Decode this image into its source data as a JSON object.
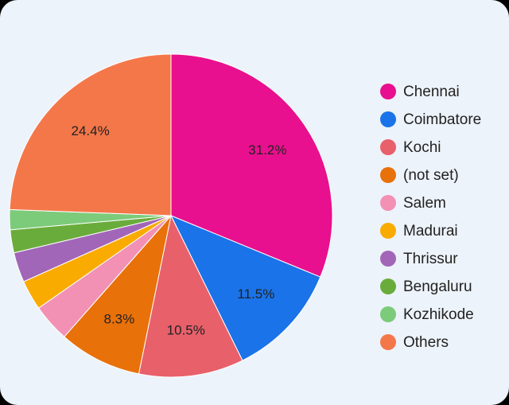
{
  "chart_data": {
    "type": "pie",
    "categories": [
      "Chennai",
      "Coimbatore",
      "Kochi",
      "(not set)",
      "Salem",
      "Madurai",
      "Thrissur",
      "Bengaluru",
      "Kozhikode",
      "Others"
    ],
    "values": [
      31.2,
      11.5,
      10.5,
      8.3,
      3.8,
      3.0,
      3.0,
      2.3,
      2.0,
      24.4
    ],
    "value_labels": [
      "31.2%",
      "11.5%",
      "10.5%",
      "8.3%",
      null,
      null,
      null,
      null,
      null,
      "24.4%"
    ],
    "colors": [
      "#e8108e",
      "#1a73e8",
      "#e8606a",
      "#e8710a",
      "#f291b4",
      "#f9ab00",
      "#a266b8",
      "#6aac3c",
      "#7ccb7a",
      "#f4774a"
    ],
    "legend": "right"
  }
}
